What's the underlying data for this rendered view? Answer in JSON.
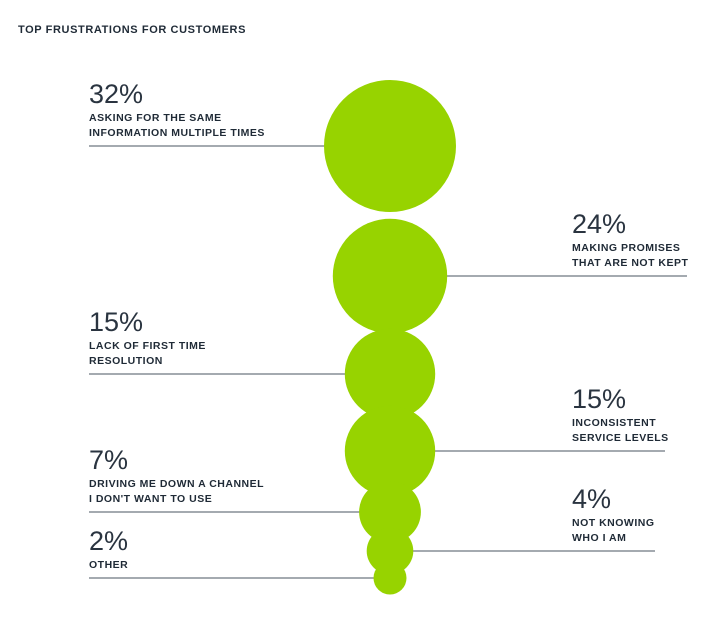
{
  "title": "TOP FRUSTRATIONS FOR CUSTOMERS",
  "colors": {
    "bubble": "#97d300",
    "leader_line": "#4a5560",
    "text": "#1f2a36"
  },
  "chart_data": {
    "type": "bubble",
    "title": "TOP FRUSTRATIONS FOR CUSTOMERS",
    "unit": "%",
    "items": [
      {
        "value": 32,
        "value_label": "32%",
        "label_lines": [
          "ASKING FOR THE SAME",
          "INFORMATION MULTIPLE TIMES"
        ],
        "side": "left"
      },
      {
        "value": 24,
        "value_label": "24%",
        "label_lines": [
          "MAKING PROMISES",
          "THAT ARE NOT KEPT"
        ],
        "side": "right"
      },
      {
        "value": 15,
        "value_label": "15%",
        "label_lines": [
          "LACK OF FIRST TIME",
          "RESOLUTION"
        ],
        "side": "left"
      },
      {
        "value": 15,
        "value_label": "15%",
        "label_lines": [
          "INCONSISTENT",
          "SERVICE LEVELS"
        ],
        "side": "right"
      },
      {
        "value": 7,
        "value_label": "7%",
        "label_lines": [
          "DRIVING ME DOWN A CHANNEL",
          "I DON'T WANT TO USE"
        ],
        "side": "left"
      },
      {
        "value": 4,
        "value_label": "4%",
        "label_lines": [
          "NOT KNOWING",
          "WHO I AM"
        ],
        "side": "right"
      },
      {
        "value": 2,
        "value_label": "2%",
        "label_lines": [
          "OTHER"
        ],
        "side": "left"
      }
    ]
  }
}
